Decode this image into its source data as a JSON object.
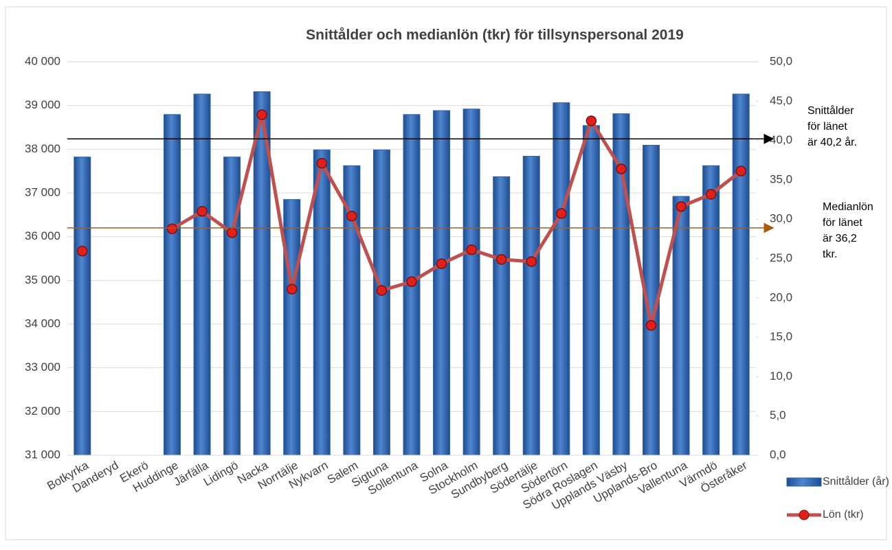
{
  "chart_data": {
    "type": "bar-line",
    "title": "Snittålder och medianlön (tkr) för tillsynspersonal 2019",
    "categories": [
      "Botkyrka",
      "Danderyd",
      "Ekerö",
      "Huddinge",
      "Järfälla",
      "Lidingö",
      "Nacka",
      "Norrtälje",
      "Nykvarn",
      "Salem",
      "Sigtuna",
      "Sollentuna",
      "Solna",
      "Stockholm",
      "Sundbyberg",
      "Södertälje",
      "Södertörn",
      "Södra Roslagen",
      "Upplands Väsby",
      "Upplands-Bro",
      "Vallentuna",
      "Värmdö",
      "Österåker"
    ],
    "series": [
      {
        "name": "Snittålder (år)",
        "type": "bar",
        "axis": "y2",
        "color": "#2e63ad",
        "values": [
          37.9,
          null,
          null,
          43.3,
          45.9,
          37.9,
          46.2,
          32.5,
          38.8,
          36.8,
          38.8,
          43.3,
          43.8,
          44.0,
          35.4,
          38.0,
          44.8,
          41.9,
          43.4,
          39.4,
          32.9,
          36.8,
          45.9
        ]
      },
      {
        "name": "Lön (tkr)",
        "type": "line",
        "axis": "y",
        "color": "#c0504d",
        "values": [
          35670,
          null,
          null,
          36180,
          36580,
          36090,
          38790,
          34800,
          37680,
          36470,
          34770,
          34970,
          35380,
          35700,
          35480,
          35430,
          36530,
          38650,
          37550,
          33970,
          36690,
          36970,
          37500
        ]
      }
    ],
    "ylim": [
      31000,
      40000
    ],
    "yticks": [
      {
        "value": 31000,
        "label": "31 000"
      },
      {
        "value": 32000,
        "label": "32 000"
      },
      {
        "value": 33000,
        "label": "33 000"
      },
      {
        "value": 34000,
        "label": "34 000"
      },
      {
        "value": 35000,
        "label": "35 000"
      },
      {
        "value": 36000,
        "label": "36 000"
      },
      {
        "value": 37000,
        "label": "37 000"
      },
      {
        "value": 38000,
        "label": "38 000"
      },
      {
        "value": 39000,
        "label": "39 000"
      },
      {
        "value": 40000,
        "label": "40 000"
      }
    ],
    "y2lim": [
      0,
      50
    ],
    "y2ticks": [
      {
        "value": 0,
        "label": "0,0"
      },
      {
        "value": 5,
        "label": "5,0"
      },
      {
        "value": 10,
        "label": "10,0"
      },
      {
        "value": 15,
        "label": "15,0"
      },
      {
        "value": 20,
        "label": "20,0"
      },
      {
        "value": 25,
        "label": "25,0"
      },
      {
        "value": 30,
        "label": "30,0"
      },
      {
        "value": 35,
        "label": "35,0"
      },
      {
        "value": 40,
        "label": "40,0"
      },
      {
        "value": 45,
        "label": "45,0"
      },
      {
        "value": 50,
        "label": "50,0"
      }
    ],
    "grid": true,
    "reference_lines": [
      {
        "value": 40.2,
        "axis": "y2",
        "color": "#000000",
        "text": [
          "Snittålder",
          "för länet",
          "är 40,2 år."
        ]
      },
      {
        "value": 36200,
        "axis": "y",
        "color": "#b05a10",
        "text": [
          "Medianlön",
          "för länet",
          "är 36,2",
          "tkr."
        ]
      }
    ],
    "legend": "right"
  }
}
